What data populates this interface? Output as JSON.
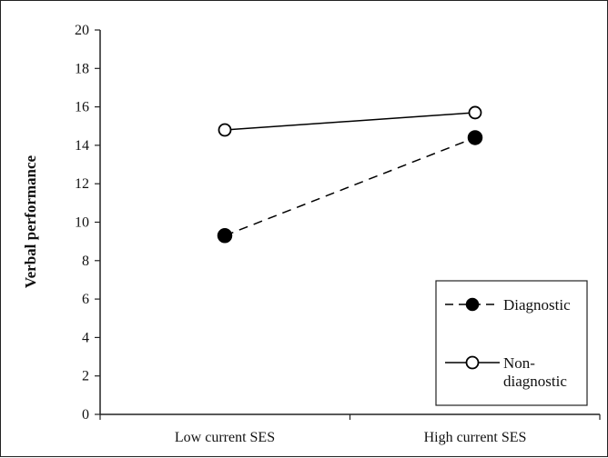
{
  "chart_data": {
    "type": "line",
    "categories": [
      "Low current SES",
      "High current SES"
    ],
    "ylabel": "Verbal performance",
    "xlabel": "",
    "ylim": [
      0,
      20
    ],
    "yticks": [
      "0",
      "2",
      "4",
      "6",
      "8",
      "10",
      "12",
      "14",
      "16",
      "18",
      "20"
    ],
    "series": [
      {
        "name": "Diagnostic",
        "values": [
          9.3,
          14.4
        ],
        "line_style": "dashed",
        "marker": "filled-circle",
        "color": "#000000"
      },
      {
        "name": "Non-diagnostic",
        "legend_lines": [
          "Non-",
          "diagnostic"
        ],
        "values": [
          14.8,
          15.7
        ],
        "line_style": "solid",
        "marker": "open-circle",
        "color": "#000000"
      }
    ],
    "grid": false,
    "legend_position": "bottom-right"
  }
}
